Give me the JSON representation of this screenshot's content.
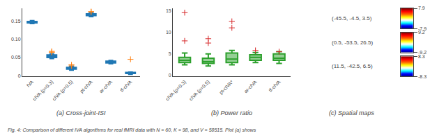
{
  "chart_data": [
    {
      "type": "box",
      "title": "(a) Cross-joint-ISI",
      "categories": [
        "IVA",
        "cIVA (ρ=0.3)",
        "cIVA (ρ=0.5)",
        "pt-cIVA",
        "ar-cIVA",
        "tf-cIVA"
      ],
      "median": [
        0.147,
        0.053,
        0.02,
        0.168,
        0.037,
        0.007
      ],
      "q1": [
        0.145,
        0.05,
        0.018,
        0.165,
        0.035,
        0.006
      ],
      "q3": [
        0.149,
        0.057,
        0.023,
        0.17,
        0.04,
        0.009
      ],
      "lower": [
        0.143,
        0.047,
        0.015,
        0.162,
        0.033,
        0.004
      ],
      "upper": [
        0.151,
        0.06,
        0.026,
        0.172,
        0.042,
        0.01
      ],
      "outliers": {
        "categories": [
          "cIVA (ρ=0.3)",
          "cIVA (ρ=0.3)",
          "cIVA (ρ=0.3)",
          "cIVA (ρ=0.5)",
          "cIVA (ρ=0.5)",
          "pt-cIVA",
          "pt-cIVA",
          "tf-cIVA"
        ],
        "values": [
          0.065,
          0.067,
          0.064,
          0.027,
          0.03,
          0.175,
          0.176,
          0.045
        ],
        "marker": "cross"
      },
      "ylim": [
        -0.002,
        0.185
      ],
      "yticks": [
        0,
        0.05,
        {
          "value": 0.1,
          "label": "0.10"
        },
        0.15
      ],
      "grid": false,
      "annotations": [
        "Fig. 4: Comparison of different IVA algorithms for real fMRI data with N = 60, K = 98, and V = 58515. Plot (a) shows"
      ]
    },
    {
      "type": "box",
      "title": "(b) Power ratio",
      "categories": [
        "cIVA (ρ=0.3)",
        "cIVA (ρ=0.5)",
        "pt-cIVA*",
        "ar-cIVA",
        "tf-cIVA"
      ],
      "median": [
        3.5,
        3.2,
        3.8,
        4.2,
        4.0
      ],
      "q1": [
        3.0,
        2.8,
        3.0,
        3.5,
        3.5
      ],
      "q3": [
        4.2,
        4.0,
        5.2,
        4.8,
        5.0
      ],
      "lower": [
        2.5,
        2.2,
        2.5,
        3.0,
        2.8
      ],
      "upper": [
        5.2,
        5.0,
        5.8,
        5.3,
        5.5
      ],
      "outliers": {
        "categories": [
          "cIVA (ρ=0.3)",
          "cIVA (ρ=0.3)",
          "cIVA (ρ=0.5)",
          "cIVA (ρ=0.5)",
          "pt-cIVA*",
          "pt-cIVA*",
          "ar-cIVA",
          "tf-cIVA"
        ],
        "values": [
          8.0,
          14.5,
          7.5,
          8.5,
          11.0,
          12.5,
          5.8,
          5.5
        ],
        "marker": "cross"
      },
      "ylim": [
        -0.2,
        15.5
      ],
      "yticks": [
        0,
        5,
        10,
        15
      ],
      "grid": false
    },
    {
      "type": "colorbar",
      "title": "(c) Spatial maps",
      "series": [
        {
          "name": "(-45.5, -4.5, 3.5)",
          "ylim": [
            -7.9,
            7.9
          ],
          "yticks": [
            -7.9,
            7.9
          ]
        },
        {
          "name": "(0.5, -53.5, 26.5)",
          "ylim": [
            -9.2,
            9.2
          ],
          "yticks": [
            -9.2,
            9.2
          ]
        },
        {
          "name": "(11.5, -42.5, 6.5)",
          "ylim": [
            -8.3,
            8.3
          ],
          "yticks": [
            -8.3,
            8.3
          ]
        }
      ]
    }
  ]
}
